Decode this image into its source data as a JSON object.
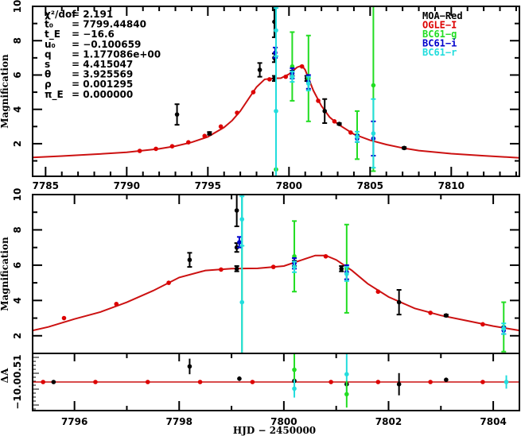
{
  "chart_data": [
    {
      "type": "scatter",
      "panel": "top",
      "title": "",
      "xlabel": "",
      "ylabel": "Magnification",
      "xlim": [
        7784.2,
        7814.2
      ],
      "ylim": [
        0.1,
        10
      ],
      "xticks": [
        7785,
        7790,
        7795,
        7800,
        7805,
        7810
      ],
      "yticks": [
        2,
        4,
        6,
        8,
        10
      ],
      "legend_position": "top-right",
      "legend": [
        {
          "name": "MOA−Red",
          "color": "#000000"
        },
        {
          "name": "OGLE−I",
          "color": "#dd0000"
        },
        {
          "name": "BC61−g",
          "color": "#22dd22"
        },
        {
          "name": "BC61−i",
          "color": "#0000cc"
        },
        {
          "name": "BC61−r",
          "color": "#22dddd"
        }
      ],
      "params": [
        {
          "label": "χ²/dof",
          "value": "= 2.191"
        },
        {
          "label": "t₀",
          "value": "= 7799.44840"
        },
        {
          "label": "t_E",
          "value": "= −16.6"
        },
        {
          "label": "u₀",
          "value": "= −0.100659"
        },
        {
          "label": "q",
          "value": "= 1.177086e+00"
        },
        {
          "label": "s",
          "value": "= 4.415047"
        },
        {
          "label": "θ",
          "value": "= 3.925569"
        },
        {
          "label": "ρ",
          "value": "= 0.001295"
        },
        {
          "label": "π_E",
          "value": "= 0.000000"
        }
      ],
      "model_curve": {
        "x": [
          7784.2,
          7786,
          7788,
          7790,
          7792,
          7793,
          7794,
          7795,
          7796,
          7796.5,
          7797,
          7797.5,
          7798,
          7798.5,
          7799,
          7799.5,
          7800,
          7800.5,
          7800.8,
          7801,
          7801.5,
          7802,
          7802.5,
          7803,
          7804,
          7805,
          7806,
          7807,
          7808,
          7810,
          7812,
          7814.2
        ],
        "y": [
          1.2,
          1.28,
          1.38,
          1.5,
          1.7,
          1.86,
          2.08,
          2.4,
          2.95,
          3.35,
          3.9,
          4.6,
          5.3,
          5.75,
          5.8,
          5.82,
          6.05,
          6.45,
          6.55,
          6.3,
          5.1,
          4.2,
          3.55,
          3.15,
          2.55,
          2.2,
          1.95,
          1.75,
          1.6,
          1.42,
          1.3,
          1.18
        ]
      },
      "series": [
        {
          "name": "MOA−Red",
          "color": "#000000",
          "points": [
            {
              "x": 7793.1,
              "y": 3.7,
              "err": 0.6
            },
            {
              "x": 7795.1,
              "y": 2.6,
              "err": 0.08
            },
            {
              "x": 7798.2,
              "y": 6.3,
              "err": 0.4
            },
            {
              "x": 7799.1,
              "y": 9.1,
              "err": 0.9
            },
            {
              "x": 7799.1,
              "y": 7.0,
              "err": 0.25
            },
            {
              "x": 7799.1,
              "y": 5.8,
              "err": 0.15
            },
            {
              "x": 7800.2,
              "y": 6.1,
              "err": 0.15
            },
            {
              "x": 7801.1,
              "y": 5.8,
              "err": 0.15
            },
            {
              "x": 7802.2,
              "y": 3.9,
              "err": 0.7
            },
            {
              "x": 7803.1,
              "y": 3.15,
              "err": 0.05
            },
            {
              "x": 7807.1,
              "y": 1.75,
              "err": 0.05
            }
          ]
        },
        {
          "name": "OGLE−I",
          "color": "#dd0000",
          "points": [
            {
              "x": 7790.8,
              "y": 1.58,
              "err": 0
            },
            {
              "x": 7791.8,
              "y": 1.7,
              "err": 0
            },
            {
              "x": 7792.8,
              "y": 1.85,
              "err": 0
            },
            {
              "x": 7793.8,
              "y": 2.08,
              "err": 0
            },
            {
              "x": 7794.8,
              "y": 2.45,
              "err": 0
            },
            {
              "x": 7795.8,
              "y": 3.0,
              "err": 0
            },
            {
              "x": 7796.8,
              "y": 3.8,
              "err": 0
            },
            {
              "x": 7797.8,
              "y": 5.0,
              "err": 0
            },
            {
              "x": 7798.8,
              "y": 5.75,
              "err": 0
            },
            {
              "x": 7799.8,
              "y": 5.9,
              "err": 0
            },
            {
              "x": 7800.8,
              "y": 6.5,
              "err": 0
            },
            {
              "x": 7801.8,
              "y": 4.5,
              "err": 0
            },
            {
              "x": 7802.8,
              "y": 3.3,
              "err": 0
            },
            {
              "x": 7803.8,
              "y": 2.65,
              "err": 0
            }
          ]
        },
        {
          "name": "BC61−g",
          "color": "#22dd22",
          "points": [
            {
              "x": 7799.2,
              "y": 0.5,
              "err": 9.5
            },
            {
              "x": 7800.2,
              "y": 6.5,
              "err": 2.0
            },
            {
              "x": 7801.2,
              "y": 5.8,
              "err": 2.5
            },
            {
              "x": 7804.2,
              "y": 2.5,
              "err": 1.4
            },
            {
              "x": 7805.2,
              "y": 5.4,
              "err": 5.0
            }
          ]
        },
        {
          "name": "BC61−i",
          "color": "#0000cc",
          "points": [
            {
              "x": 7799.15,
              "y": 7.3,
              "err": 0.3
            },
            {
              "x": 7800.2,
              "y": 6.1,
              "err": 0.3
            },
            {
              "x": 7801.2,
              "y": 5.6,
              "err": 0.4
            },
            {
              "x": 7804.2,
              "y": 2.3,
              "err": 0.2
            },
            {
              "x": 7805.2,
              "y": 2.3,
              "err": 1.0
            }
          ]
        },
        {
          "name": "BC61−r",
          "color": "#22dddd",
          "points": [
            {
              "x": 7799.2,
              "y": 8.6,
              "err": 1.5
            },
            {
              "x": 7799.2,
              "y": 3.9,
              "err": 6.0
            },
            {
              "x": 7800.2,
              "y": 5.9,
              "err": 0.3
            },
            {
              "x": 7801.2,
              "y": 5.5,
              "err": 0.4
            },
            {
              "x": 7804.2,
              "y": 2.4,
              "err": 0.3
            },
            {
              "x": 7805.2,
              "y": 2.6,
              "err": 2.0
            }
          ]
        }
      ]
    },
    {
      "type": "scatter",
      "panel": "bottom-zoom",
      "xlabel": "HJD − 2450000",
      "ylabel": "Magnification",
      "xlim": [
        7795.2,
        7804.5
      ],
      "ylim": [
        1,
        10
      ],
      "xticks": [
        7796,
        7798,
        7800,
        7802,
        7804
      ],
      "yticks": [
        2,
        4,
        6,
        8,
        10
      ],
      "model_curve": {
        "x": [
          7795.2,
          7795.5,
          7796,
          7796.5,
          7797,
          7797.5,
          7798,
          7798.5,
          7799,
          7799.5,
          7800,
          7800.3,
          7800.6,
          7800.8,
          7801,
          7801.3,
          7801.6,
          7802,
          7802.5,
          7803,
          7803.5,
          7804,
          7804.5
        ],
        "y": [
          2.3,
          2.5,
          2.95,
          3.35,
          3.9,
          4.55,
          5.3,
          5.7,
          5.8,
          5.82,
          5.95,
          6.25,
          6.55,
          6.55,
          6.3,
          5.7,
          4.95,
          4.2,
          3.55,
          3.15,
          2.85,
          2.55,
          2.3
        ]
      },
      "series_ref": "same data as top panel, zoomed"
    },
    {
      "type": "scatter",
      "panel": "residuals",
      "xlabel": "HJD − 2450000",
      "ylabel": "ΔA",
      "ytick_labels": [
        "−10.0",
        "0.5",
        "0.51"
      ],
      "residual_points": [
        {
          "x": 7795.4,
          "y": 0.0,
          "err": 0,
          "color": "#dd0000"
        },
        {
          "x": 7795.6,
          "y": 0.0,
          "err": 0.02,
          "color": "#000000"
        },
        {
          "x": 7796.4,
          "y": 0.0,
          "err": 0,
          "color": "#dd0000"
        },
        {
          "x": 7797.4,
          "y": 0.0,
          "err": 0,
          "color": "#dd0000"
        },
        {
          "x": 7798.2,
          "y": 0.7,
          "err": 0.35,
          "color": "#000000"
        },
        {
          "x": 7798.4,
          "y": 0.0,
          "err": 0,
          "color": "#dd0000"
        },
        {
          "x": 7799.15,
          "y": 0.15,
          "err": 0.1,
          "color": "#000000"
        },
        {
          "x": 7799.4,
          "y": 0.0,
          "err": 0,
          "color": "#dd0000"
        },
        {
          "x": 7800.2,
          "y": 0.05,
          "err": 0.1,
          "color": "#000000"
        },
        {
          "x": 7800.2,
          "y": 0.55,
          "err": 1.0,
          "color": "#22dd22"
        },
        {
          "x": 7800.2,
          "y": -0.3,
          "err": 0.4,
          "color": "#22dddd"
        },
        {
          "x": 7800.9,
          "y": 0.0,
          "err": 0,
          "color": "#dd0000"
        },
        {
          "x": 7801.2,
          "y": -0.1,
          "err": 0.1,
          "color": "#000000"
        },
        {
          "x": 7801.2,
          "y": 0.35,
          "err": 1.0,
          "color": "#22dddd"
        },
        {
          "x": 7801.2,
          "y": -0.55,
          "err": 0.6,
          "color": "#22dd22"
        },
        {
          "x": 7801.8,
          "y": 0.0,
          "err": 0,
          "color": "#dd0000"
        },
        {
          "x": 7802.2,
          "y": -0.1,
          "err": 0.5,
          "color": "#000000"
        },
        {
          "x": 7802.8,
          "y": 0.0,
          "err": 0,
          "color": "#dd0000"
        },
        {
          "x": 7803.1,
          "y": 0.1,
          "err": 0.05,
          "color": "#000000"
        },
        {
          "x": 7803.8,
          "y": 0.0,
          "err": 0,
          "color": "#dd0000"
        },
        {
          "x": 7804.25,
          "y": 0.0,
          "err": 0.3,
          "color": "#22dddd"
        }
      ]
    }
  ]
}
